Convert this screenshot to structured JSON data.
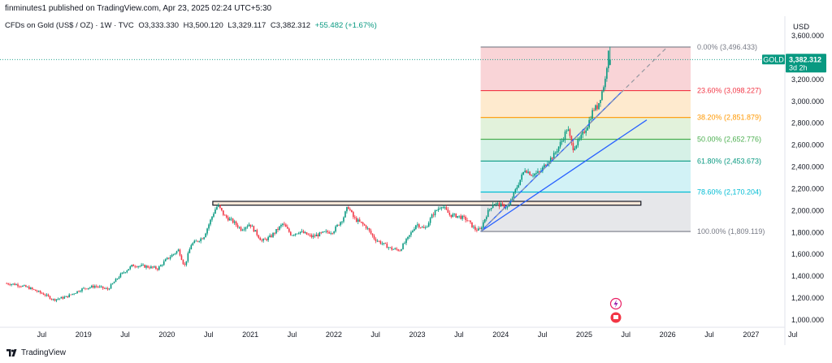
{
  "header": {
    "publisher": "finminutes1 published on TradingView.com, Apr 23, 2025 02:24 UTC+5:30"
  },
  "symbol": {
    "name": "CFDs on Gold (US$ / OZ) · 1W · TVC",
    "open": "O3,333.330",
    "high": "H3,500.120",
    "low": "L3,329.117",
    "close": "C3,382.312",
    "change": "+55.482 (+1.67%)"
  },
  "currency": "USD",
  "price_tag": {
    "ticker": "GOLD",
    "price": "3,382.312",
    "countdown": "3d 2h"
  },
  "footer": {
    "brand": "TradingView"
  },
  "colors": {
    "up": "#089981",
    "down": "#f23645",
    "fib_line_blue": "#2962ff",
    "fib_0": "#787b86",
    "fib_236": "#f23645",
    "fib_382": "#ff9800",
    "fib_500": "#4caf50",
    "fib_618": "#089981",
    "fib_786": "#00bcd4",
    "fib_100": "#787b86"
  },
  "chart_data": {
    "type": "candlestick",
    "timeframe": "1W",
    "y_axis": {
      "range": [
        950,
        3650
      ],
      "ticks": [
        1000,
        1200,
        1400,
        1600,
        1800,
        2000,
        2200,
        2400,
        2600,
        2800,
        3000,
        3200,
        3400,
        3600
      ],
      "tick_labels": [
        "1,000.000",
        "1,200.000",
        "1,400.000",
        "1,600.000",
        "1,800.000",
        "2,000.000",
        "2,200.000",
        "2,400.000",
        "2,600.000",
        "2,800.000",
        "3,000.000",
        "3,200.000",
        "3,400.000",
        "3,600.000"
      ]
    },
    "x_axis": {
      "ticks": [
        {
          "t": 2018.5,
          "label": "Jul"
        },
        {
          "t": 2019.0,
          "label": "2019"
        },
        {
          "t": 2019.5,
          "label": "Jul"
        },
        {
          "t": 2020.0,
          "label": "2020"
        },
        {
          "t": 2020.5,
          "label": "Jul"
        },
        {
          "t": 2021.0,
          "label": "2021"
        },
        {
          "t": 2021.5,
          "label": "Jul"
        },
        {
          "t": 2022.0,
          "label": "2022"
        },
        {
          "t": 2022.5,
          "label": "Jul"
        },
        {
          "t": 2023.0,
          "label": "2023"
        },
        {
          "t": 2023.5,
          "label": "Jul"
        },
        {
          "t": 2024.0,
          "label": "2024"
        },
        {
          "t": 2024.5,
          "label": "Jul"
        },
        {
          "t": 2025.0,
          "label": "2025"
        },
        {
          "t": 2025.5,
          "label": "Jul"
        },
        {
          "t": 2026.0,
          "label": "2026"
        },
        {
          "t": 2026.5,
          "label": "Jul"
        },
        {
          "t": 2027.0,
          "label": "2027"
        },
        {
          "t": 2027.5,
          "label": "Jul"
        }
      ]
    },
    "price_path": [
      [
        2018.07,
        1335
      ],
      [
        2018.2,
        1325
      ],
      [
        2018.35,
        1295
      ],
      [
        2018.55,
        1230
      ],
      [
        2018.65,
        1185
      ],
      [
        2018.8,
        1210
      ],
      [
        2019.0,
        1285
      ],
      [
        2019.15,
        1310
      ],
      [
        2019.3,
        1280
      ],
      [
        2019.45,
        1410
      ],
      [
        2019.6,
        1500
      ],
      [
        2019.75,
        1490
      ],
      [
        2019.9,
        1470
      ],
      [
        2020.0,
        1550
      ],
      [
        2020.15,
        1640
      ],
      [
        2020.22,
        1490
      ],
      [
        2020.3,
        1690
      ],
      [
        2020.45,
        1760
      ],
      [
        2020.58,
        2000
      ],
      [
        2020.62,
        2050
      ],
      [
        2020.7,
        1950
      ],
      [
        2020.8,
        1900
      ],
      [
        2020.9,
        1830
      ],
      [
        2021.0,
        1880
      ],
      [
        2021.15,
        1720
      ],
      [
        2021.25,
        1760
      ],
      [
        2021.4,
        1880
      ],
      [
        2021.5,
        1780
      ],
      [
        2021.6,
        1810
      ],
      [
        2021.75,
        1760
      ],
      [
        2021.9,
        1800
      ],
      [
        2022.0,
        1810
      ],
      [
        2022.12,
        1930
      ],
      [
        2022.18,
        2040
      ],
      [
        2022.25,
        1930
      ],
      [
        2022.4,
        1850
      ],
      [
        2022.5,
        1740
      ],
      [
        2022.7,
        1650
      ],
      [
        2022.8,
        1640
      ],
      [
        2022.9,
        1750
      ],
      [
        2023.0,
        1880
      ],
      [
        2023.1,
        1830
      ],
      [
        2023.2,
        1970
      ],
      [
        2023.3,
        2050
      ],
      [
        2023.4,
        1960
      ],
      [
        2023.5,
        1950
      ],
      [
        2023.6,
        1920
      ],
      [
        2023.7,
        1830
      ],
      [
        2023.76,
        1820
      ],
      [
        2023.85,
        1980
      ],
      [
        2023.92,
        2070
      ],
      [
        2024.0,
        2050
      ],
      [
        2024.1,
        2030
      ],
      [
        2024.2,
        2210
      ],
      [
        2024.3,
        2380
      ],
      [
        2024.38,
        2330
      ],
      [
        2024.48,
        2350
      ],
      [
        2024.55,
        2430
      ],
      [
        2024.65,
        2510
      ],
      [
        2024.75,
        2650
      ],
      [
        2024.81,
        2760
      ],
      [
        2024.87,
        2570
      ],
      [
        2024.95,
        2640
      ],
      [
        2025.05,
        2780
      ],
      [
        2025.12,
        2930
      ],
      [
        2025.17,
        2950
      ],
      [
        2025.22,
        3080
      ],
      [
        2025.27,
        3220
      ],
      [
        2025.3,
        3500
      ],
      [
        2025.31,
        3382
      ]
    ],
    "last_candle": {
      "open": 3333.33,
      "high": 3500.12,
      "low": 3329.117,
      "close": 3382.312
    },
    "fibonacci_retracement": {
      "start": {
        "t": 2023.76,
        "price": 1809.119
      },
      "end": {
        "t": 2025.3,
        "price": 3496.433
      },
      "levels": [
        {
          "level": "0.00%",
          "price": 3496.433,
          "label": "0.00% (3,496.433)"
        },
        {
          "level": "23.60%",
          "price": 3098.227,
          "label": "23.60% (3,098.227)"
        },
        {
          "level": "38.20%",
          "price": 2851.879,
          "label": "38.20% (2,851.879)"
        },
        {
          "level": "50.00%",
          "price": 2652.776,
          "label": "50.00% (2,652.776)"
        },
        {
          "level": "61.80%",
          "price": 2453.673,
          "label": "61.80% (2,453.673)"
        },
        {
          "level": "78.60%",
          "price": 2170.204,
          "label": "78.60% (2,170.204)"
        },
        {
          "level": "100.00%",
          "price": 1809.119,
          "label": "100.00% (1,809.119)"
        }
      ]
    },
    "resistance_zone": {
      "t_start": 2020.55,
      "t_end": 2025.68,
      "price_low": 2050,
      "price_high": 2085
    },
    "trendlines": [
      {
        "from": {
          "t": 2023.76,
          "price": 1809
        },
        "to": {
          "t": 2025.44,
          "price": 3080
        }
      },
      {
        "from": {
          "t": 2023.76,
          "price": 1809
        },
        "to": {
          "t": 2025.75,
          "price": 2830
        }
      }
    ],
    "trend_projection": {
      "from": {
        "t": 2023.76,
        "price": 1809
      },
      "to": {
        "t": 2026.0,
        "price": 3500
      }
    }
  }
}
